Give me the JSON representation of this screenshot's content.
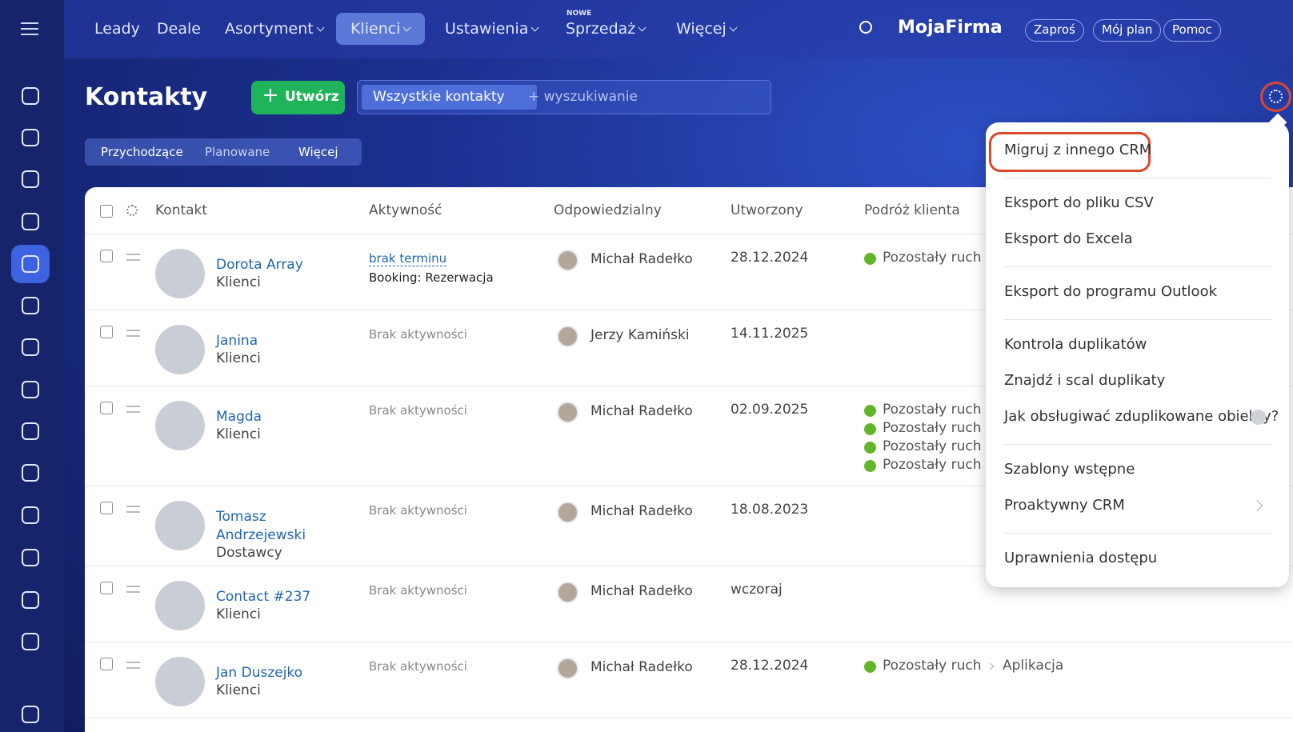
{
  "nav": {
    "items": [
      "Leady",
      "Deale",
      "Asortyment",
      "Klienci",
      "Ustawienia",
      "Sprzedaż",
      "Więcej"
    ],
    "badge": "NOWE",
    "company": "MojaFirma",
    "buttons": [
      "Zaproś",
      "Mój plan",
      "Pomoc"
    ]
  },
  "header": {
    "title": "Kontakty",
    "create": "Utwórz",
    "filter": "Wszystkie kontakty",
    "search_placeholder": "+ wyszukiwanie"
  },
  "tabs": [
    "Przychodzące",
    "Planowane",
    "Więcej"
  ],
  "table": {
    "columns": [
      "Kontakt",
      "Aktywność",
      "Odpowiedzialny",
      "Utworzony",
      "Podróż klienta"
    ],
    "rows": [
      {
        "name": "Dorota Array",
        "type": "Klienci",
        "activity": "brak terminu",
        "activity_detail": "Booking: Rezerwacja",
        "responsible": "Michał Radełko",
        "created": "28.12.2024",
        "journey": [
          "Pozostały ruch"
        ]
      },
      {
        "name": "Janina",
        "type": "Klienci",
        "activity": "Brak aktywności",
        "responsible": "Jerzy Kamiński",
        "created": "14.11.2025",
        "journey": []
      },
      {
        "name": "Magda",
        "type": "Klienci",
        "activity": "Brak aktywności",
        "responsible": "Michał Radełko",
        "created": "02.09.2025",
        "journey": [
          "Pozostały ruch",
          "Pozostały ruch",
          "Pozostały ruch",
          "Pozostały ruch"
        ]
      },
      {
        "name": "Tomasz Andrzejewski",
        "type": "Dostawcy",
        "activity": "Brak aktywności",
        "responsible": "Michał Radełko",
        "created": "18.08.2023",
        "journey": []
      },
      {
        "name": "Contact #237",
        "type": "Klienci",
        "activity": "Brak aktywności",
        "responsible": "Michał Radełko",
        "created": "wczoraj",
        "journey": []
      },
      {
        "name": "Jan Duszejko",
        "type": "Klienci",
        "activity": "Brak aktywności",
        "responsible": "Michał Radełko",
        "created": "28.12.2024",
        "journey": [
          "Pozostały ruch"
        ],
        "journey_next": "Aplikacja"
      }
    ]
  },
  "menu": {
    "groups": [
      [
        "Migruj z innego CRM"
      ],
      [
        "Eksport do pliku CSV",
        "Eksport do Excela"
      ],
      [
        "Eksport do programu Outlook"
      ],
      [
        "Kontrola duplikatów",
        "Znajdź i scal duplikaty",
        "Jak obsługiwać zduplikowane obiekty?"
      ],
      [
        "Szablony wstępne",
        "Proaktywny CRM"
      ],
      [
        "Uprawnienia dostępu"
      ]
    ]
  }
}
